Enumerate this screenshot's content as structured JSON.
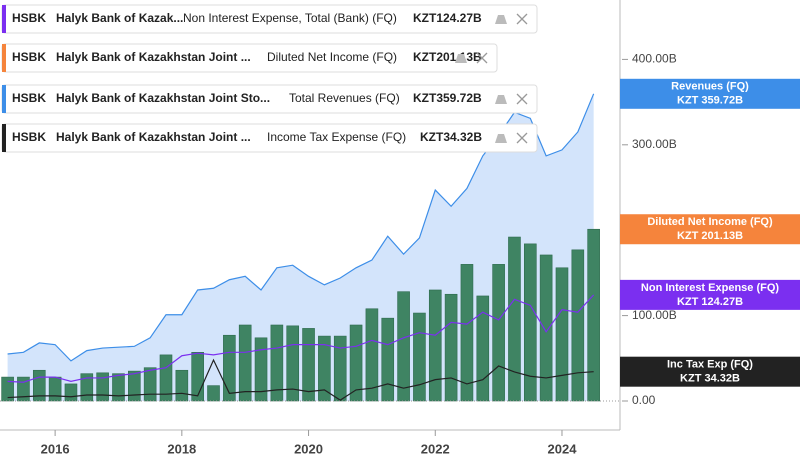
{
  "chart_data": {
    "type": "combo",
    "x": [
      2015.25,
      2015.5,
      2015.75,
      2016,
      2016.25,
      2016.5,
      2016.75,
      2017,
      2017.25,
      2017.5,
      2017.75,
      2018,
      2018.25,
      2018.5,
      2018.75,
      2019,
      2019.25,
      2019.5,
      2019.75,
      2020,
      2020.25,
      2020.5,
      2020.75,
      2021,
      2021.25,
      2021.5,
      2021.75,
      2022,
      2022.25,
      2022.5,
      2022.75,
      2023,
      2023.25,
      2023.5,
      2023.75,
      2024,
      2024.25,
      2024.5
    ],
    "xlim": [
      2015.13,
      2024.9
    ],
    "xticks": [
      2016,
      2018,
      2020,
      2022,
      2024
    ],
    "ylim": [
      -20,
      470
    ],
    "yticks": [
      {
        "value": 0,
        "label": "0.00"
      },
      {
        "value": 100,
        "label": "100.00B"
      },
      {
        "value": 300,
        "label": "300.00B"
      },
      {
        "value": 400,
        "label": "400.00B"
      }
    ],
    "series": [
      {
        "type": "line",
        "name": "Non Interest Expense, Total (Bank) (FQ)",
        "symbol": "HSBK",
        "company": "Halyk Bank of Kazak...",
        "legend_value": "KZT124.27B",
        "tag": "Non Interest Expense (FQ)",
        "tag_value": "KZT 124.27B",
        "color": "#7b2ff0",
        "values": [
          23,
          22,
          28,
          28,
          23,
          27,
          27,
          30,
          32,
          36,
          39,
          53,
          56,
          54,
          57,
          57,
          60,
          62,
          66,
          66,
          66,
          62,
          64,
          71,
          66,
          74,
          80,
          77,
          92,
          90,
          104,
          95,
          119,
          112,
          81,
          107,
          104,
          124.27
        ]
      },
      {
        "type": "bar",
        "name": "Diluted Net Income (FQ)",
        "symbol": "HSBK",
        "company": "Halyk Bank of Kazakhstan Joint ...",
        "legend_value": "KZT201.13B",
        "tag": "Diluted Net Income (FQ)",
        "tag_value": "KZT 201.13B",
        "color": "#f5843c",
        "bar_color": "#3f8463",
        "values": [
          28,
          28,
          36,
          28,
          20,
          32,
          33,
          32,
          35,
          39,
          54,
          36,
          57,
          18,
          77,
          89,
          74,
          89,
          88,
          85,
          76,
          76,
          89,
          108,
          97,
          128,
          103,
          130,
          125,
          160,
          123,
          160,
          192,
          184,
          171,
          156,
          177,
          201.13
        ]
      },
      {
        "type": "area",
        "name": "Total Revenues (FQ)",
        "symbol": "HSBK",
        "company": "Halyk Bank of Kazakhstan Joint Sto...",
        "legend_value": "KZT359.72B",
        "tag": "Revenues (FQ)",
        "tag_value": "KZT 359.72B",
        "color": "#3d8ee8",
        "fill": "#d3e4fb",
        "values": [
          55,
          57,
          68,
          66,
          47,
          59,
          62,
          63,
          64,
          74,
          101,
          101,
          130,
          132,
          142,
          146,
          130,
          156,
          159,
          146,
          136,
          144,
          156,
          165,
          193,
          172,
          191,
          247,
          228,
          249,
          287,
          311,
          338,
          331,
          287,
          294,
          315,
          359.72
        ]
      },
      {
        "type": "line",
        "name": "Income Tax Expense (FQ)",
        "symbol": "HSBK",
        "company": "Halyk Bank of Kazakhstan Joint ...",
        "legend_value": "KZT34.32B",
        "tag": "Inc Tax Exp (FQ)",
        "tag_value": "KZT 34.32B",
        "color": "#222222",
        "values": [
          4,
          5,
          6,
          6,
          5,
          7,
          7,
          6,
          7,
          8,
          8,
          9,
          6,
          48,
          9,
          11,
          11,
          13,
          14,
          11,
          13,
          1,
          13,
          15,
          20,
          15,
          19,
          25,
          27,
          20,
          25,
          41,
          34,
          29,
          27,
          30,
          33,
          34.32
        ]
      }
    ]
  }
}
